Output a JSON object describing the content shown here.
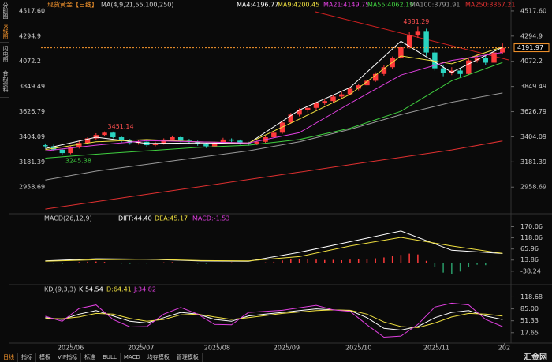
{
  "ui": {
    "sidebar": [
      "分时图",
      "K线图",
      "闪电图",
      "合约资料"
    ],
    "tab": "日线",
    "tabs": [
      "指标",
      "模板",
      "VIP指标",
      "标准",
      "BULL",
      "MACD",
      "均存模板",
      "管理模板"
    ],
    "logo": "汇金网"
  },
  "chart_data": [
    {
      "type": "candlestick",
      "title": "现货黄金【日线】",
      "legend_title": "MA(4,9,21,55,100,250)",
      "up_color": "#ff3b3b",
      "down_color": "#2ad4c0",
      "xlim": [
        -0.5,
        55
      ],
      "xticks": [
        {
          "value": 3,
          "label": "2025/06"
        },
        {
          "value": 11.3,
          "label": "2025/07"
        },
        {
          "value": 20.3,
          "label": "2025/08"
        },
        {
          "value": 28.5,
          "label": "2025/09"
        },
        {
          "value": 37,
          "label": "2025/10"
        },
        {
          "value": 46.2,
          "label": "2025/11"
        },
        {
          "value": 54.2,
          "label": "202"
        }
      ],
      "ylim": [
        2744,
        4545
      ],
      "yticks": [
        {
          "value": 4517.6,
          "label": "4517.60"
        },
        4294.9,
        4072.2,
        3849.49,
        3626.79,
        3404.09,
        3181.39,
        2958.69
      ],
      "open": [
        3330,
        3320,
        3290,
        3260,
        3310,
        3350,
        3390,
        3420,
        3440,
        3400,
        3370,
        3350,
        3360,
        3330,
        3345,
        3380,
        3400,
        3370,
        3360,
        3340,
        3320,
        3350,
        3380,
        3370,
        3350,
        3340,
        3360,
        3400,
        3440,
        3530,
        3600,
        3640,
        3660,
        3700,
        3720,
        3760,
        3780,
        3830,
        3860,
        3900,
        3960,
        4020,
        4100,
        4200,
        4300,
        4340,
        4150,
        4010,
        3970,
        3990,
        3960,
        4080,
        4100,
        4060,
        4150
      ],
      "high": [
        3345,
        3335,
        3300,
        3320,
        3365,
        3400,
        3435,
        3451.14,
        3450,
        3410,
        3385,
        3375,
        3370,
        3360,
        3390,
        3415,
        3410,
        3385,
        3370,
        3350,
        3360,
        3395,
        3390,
        3380,
        3360,
        3370,
        3410,
        3450,
        3545,
        3615,
        3655,
        3680,
        3715,
        3740,
        3775,
        3800,
        3845,
        3875,
        3920,
        3975,
        4040,
        4115,
        4220,
        4330,
        4381.29,
        4360,
        4180,
        4040,
        4020,
        4010,
        4095,
        4140,
        4120,
        4165,
        4230
      ],
      "low": [
        3305,
        3275,
        3245.38,
        3250,
        3300,
        3340,
        3380,
        3410,
        3390,
        3355,
        3335,
        3335,
        3315,
        3320,
        3335,
        3370,
        3355,
        3345,
        3325,
        3305,
        3310,
        3340,
        3355,
        3335,
        3325,
        3330,
        3350,
        3390,
        3430,
        3520,
        3585,
        3620,
        3645,
        3685,
        3705,
        3745,
        3770,
        3815,
        3850,
        3890,
        3945,
        4005,
        4090,
        4185,
        4280,
        4120,
        3990,
        3940,
        3950,
        3930,
        3950,
        4060,
        4040,
        4050,
        4140
      ],
      "close": [
        3320,
        3290,
        3260,
        3310,
        3350,
        3390,
        3420,
        3440,
        3400,
        3370,
        3350,
        3360,
        3330,
        3345,
        3380,
        3400,
        3370,
        3360,
        3340,
        3320,
        3350,
        3380,
        3370,
        3350,
        3340,
        3360,
        3400,
        3440,
        3530,
        3600,
        3640,
        3660,
        3700,
        3720,
        3760,
        3780,
        3830,
        3860,
        3900,
        3960,
        4020,
        4100,
        4200,
        4300,
        4340,
        4150,
        4010,
        3970,
        3990,
        3960,
        4080,
        4100,
        4060,
        4150,
        4191.97
      ],
      "price_line_color": "#ff9a2e",
      "series": [
        {
          "name": "MA4:4196.77",
          "color": "#ffffff",
          "x": [
            0,
            6,
            12,
            18,
            24,
            30,
            36,
            42,
            48,
            54
          ],
          "values": [
            3300,
            3400,
            3345,
            3350,
            3345,
            3640,
            3840,
            4250,
            3975,
            4196.77
          ]
        },
        {
          "name": "MA9:4200.45",
          "color": "#f0e040",
          "x": [
            0,
            6,
            12,
            18,
            24,
            30,
            36,
            42,
            48,
            54
          ],
          "values": [
            3290,
            3360,
            3380,
            3360,
            3350,
            3560,
            3780,
            4120,
            4050,
            4200.45
          ]
        },
        {
          "name": "MA21:4149.75",
          "color": "#e040e0",
          "x": [
            0,
            6,
            12,
            18,
            24,
            30,
            36,
            42,
            48,
            54
          ],
          "values": [
            3280,
            3330,
            3370,
            3360,
            3350,
            3440,
            3700,
            3950,
            4080,
            4149.75
          ]
        },
        {
          "name": "MA55:4062.19",
          "color": "#40d040",
          "x": [
            0,
            6,
            12,
            18,
            24,
            30,
            36,
            42,
            48,
            54
          ],
          "values": [
            3215,
            3250,
            3280,
            3310,
            3330,
            3380,
            3480,
            3630,
            3900,
            4062.19
          ]
        },
        {
          "name": "MA100:3791.91",
          "color": "#9a9a9a",
          "x": [
            0,
            6,
            12,
            18,
            24,
            30,
            36,
            42,
            48,
            54
          ],
          "values": [
            3021,
            3100,
            3160,
            3220,
            3280,
            3360,
            3470,
            3600,
            3710,
            3791.91
          ]
        },
        {
          "name": "MA250:3367.21",
          "color": "#e03030",
          "x": [
            0,
            6,
            12,
            18,
            24,
            30,
            36,
            42,
            48,
            54
          ],
          "values": [
            2764,
            2829,
            2895,
            2960,
            3026,
            3091,
            3157,
            3222,
            3288,
            3367.21
          ]
        }
      ]
    },
    {
      "type": "macd",
      "title": "MACD(26,12,9)",
      "ylim": [
        -86.9,
        197.8
      ],
      "yticks": [
        170.06,
        118.06,
        65.96,
        13.86,
        -38.24
      ],
      "up_color": "#ff3b3b",
      "down_color": "#2a9d6a",
      "histogram": {
        "name": "MACD:-1.53",
        "color": "#e040e0",
        "values": [
          2,
          -3,
          -5,
          1,
          4,
          6,
          7,
          5,
          1,
          -3,
          -4,
          -2,
          -3,
          1,
          3,
          4,
          2,
          -1,
          -3,
          -4,
          -1,
          2,
          3,
          1,
          -2,
          -1,
          3,
          6,
          12,
          18,
          20,
          18,
          16,
          14,
          15,
          13,
          16,
          17,
          19,
          22,
          26,
          32,
          38,
          44,
          40,
          10,
          -20,
          -45,
          -50,
          -40,
          -20,
          -8,
          -10,
          -2,
          -1.53
        ]
      },
      "series": [
        {
          "name": "DIFF:44.40",
          "color": "#ffffff",
          "x": [
            0,
            6,
            12,
            18,
            24,
            30,
            36,
            42,
            48,
            54
          ],
          "values": [
            10,
            20,
            18,
            10,
            8,
            50,
            100,
            150,
            60,
            44.4
          ]
        },
        {
          "name": "DEA:45.17",
          "color": "#f0e040",
          "x": [
            0,
            6,
            12,
            18,
            24,
            30,
            36,
            42,
            48,
            54
          ],
          "values": [
            8,
            15,
            18,
            12,
            10,
            30,
            80,
            120,
            80,
            45.17
          ]
        }
      ]
    },
    {
      "type": "line",
      "title": "KDJ(9,3,3)",
      "ylim": [
        -5.1,
        133.1
      ],
      "yticks": [
        118.68,
        {
          "value": 85,
          "label": "85.00"
        },
        51.33,
        17.65
      ],
      "series": [
        {
          "name": "K:54.54",
          "color": "#ffffff",
          "x": [
            0,
            2,
            4,
            6,
            8,
            10,
            12,
            14,
            16,
            18,
            20,
            22,
            24,
            26,
            28,
            30,
            32,
            34,
            36,
            38,
            40,
            42,
            44,
            46,
            48,
            50,
            52,
            54
          ],
          "values": [
            60,
            55,
            70,
            80,
            65,
            50,
            45,
            60,
            75,
            70,
            55,
            50,
            65,
            70,
            75,
            80,
            85,
            82,
            80,
            60,
            30,
            25,
            35,
            60,
            75,
            80,
            65,
            54.54
          ]
        },
        {
          "name": "D:64.41",
          "color": "#f0e040",
          "x": [
            0,
            2,
            4,
            6,
            8,
            10,
            12,
            14,
            16,
            18,
            20,
            22,
            24,
            26,
            28,
            30,
            32,
            34,
            36,
            38,
            40,
            42,
            44,
            46,
            48,
            50,
            52,
            54
          ],
          "values": [
            58,
            57,
            62,
            72,
            70,
            58,
            50,
            55,
            68,
            70,
            62,
            55,
            60,
            66,
            72,
            76,
            80,
            82,
            81,
            70,
            48,
            35,
            32,
            45,
            62,
            72,
            70,
            64.41
          ]
        },
        {
          "name": "J:34.82",
          "color": "#e040e0",
          "x": [
            0,
            2,
            4,
            6,
            8,
            10,
            12,
            14,
            16,
            18,
            20,
            22,
            24,
            26,
            28,
            30,
            32,
            34,
            36,
            38,
            40,
            42,
            44,
            46,
            48,
            50,
            52,
            54
          ],
          "values": [
            64,
            50,
            86,
            96,
            55,
            34,
            35,
            70,
            89,
            70,
            41,
            40,
            75,
            78,
            81,
            88,
            95,
            82,
            78,
            40,
            5,
            8,
            41,
            90,
            101,
            96,
            55,
            34.82
          ]
        }
      ]
    }
  ]
}
